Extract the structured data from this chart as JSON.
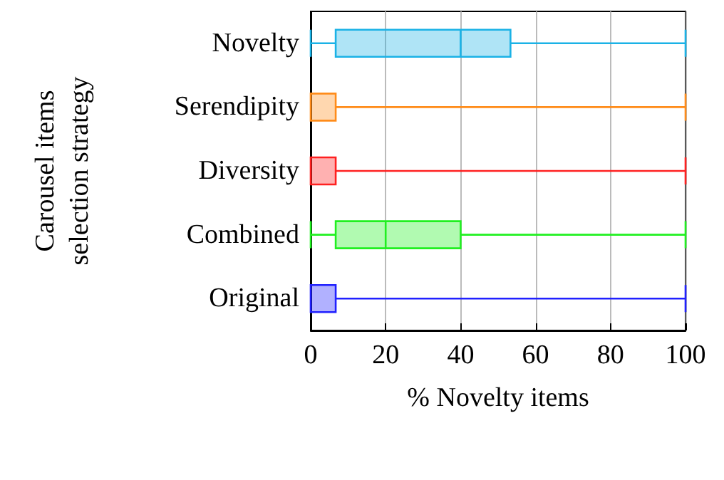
{
  "chart_data": {
    "type": "box",
    "orientation": "horizontal",
    "xlabel": "% Novelty items",
    "ylabel": "Carousel items\nselection strategy",
    "categories": [
      "Novelty",
      "Serendipity",
      "Diversity",
      "Combined",
      "Original"
    ],
    "colors": [
      "#1ab2e6",
      "#ff8c1a",
      "#ff2020",
      "#20f020",
      "#2020ff"
    ],
    "boxes": [
      {
        "low": 0,
        "q1": 6.67,
        "median": 40,
        "q3": 53.3,
        "high": 100
      },
      {
        "low": 0,
        "q1": 0,
        "median": 0,
        "q3": 6.67,
        "high": 100
      },
      {
        "low": 0,
        "q1": 0,
        "median": 0,
        "q3": 6.67,
        "high": 100
      },
      {
        "low": 0,
        "q1": 6.67,
        "median": 20,
        "q3": 40,
        "high": 100
      },
      {
        "low": 0,
        "q1": 0,
        "median": 0,
        "q3": 6.67,
        "high": 100
      }
    ],
    "xlim": [
      0,
      100
    ],
    "xticks": [
      0,
      20,
      40,
      60,
      80,
      100
    ],
    "grid": "x"
  }
}
